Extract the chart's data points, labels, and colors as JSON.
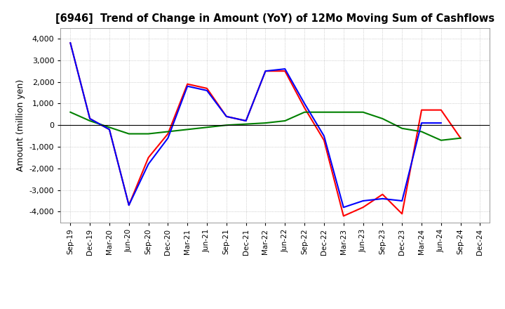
{
  "title": "[6946]  Trend of Change in Amount (YoY) of 12Mo Moving Sum of Cashflows",
  "ylabel": "Amount (million yen)",
  "ylim": [
    -4500,
    4500
  ],
  "yticks": [
    -4000,
    -3000,
    -2000,
    -1000,
    0,
    1000,
    2000,
    3000,
    4000
  ],
  "x_labels": [
    "Sep-19",
    "Dec-19",
    "Mar-20",
    "Jun-20",
    "Sep-20",
    "Dec-20",
    "Mar-21",
    "Jun-21",
    "Sep-21",
    "Dec-21",
    "Mar-22",
    "Jun-22",
    "Sep-22",
    "Dec-22",
    "Mar-23",
    "Jun-23",
    "Sep-23",
    "Dec-23",
    "Mar-24",
    "Jun-24",
    "Sep-24",
    "Dec-24"
  ],
  "operating": [
    3800,
    300,
    -200,
    -3700,
    -1500,
    -400,
    1900,
    1700,
    400,
    200,
    2500,
    2500,
    800,
    -700,
    -4200,
    -3800,
    -3200,
    -4100,
    700,
    700,
    -600,
    null
  ],
  "investing": [
    600,
    200,
    -100,
    -400,
    -400,
    -300,
    -200,
    -100,
    0,
    50,
    100,
    200,
    600,
    600,
    600,
    600,
    300,
    -150,
    -300,
    -700,
    -600,
    null
  ],
  "free": [
    3800,
    300,
    -200,
    -3700,
    -1800,
    -600,
    1800,
    1600,
    400,
    200,
    2500,
    2600,
    1000,
    -500,
    -3800,
    -3500,
    -3400,
    -3500,
    100,
    100,
    null,
    null
  ],
  "line_colors": {
    "operating": "#ff0000",
    "investing": "#008000",
    "free": "#0000ff"
  },
  "background_color": "#ffffff",
  "grid_color": "#b0b0b0"
}
